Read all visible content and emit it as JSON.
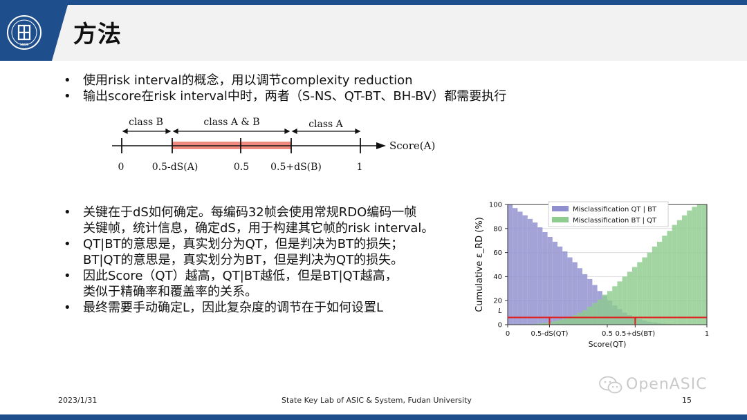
{
  "slide": {
    "title": "方法",
    "bullets_top": [
      "使用risk interval的概念，用以调节complexity reduction",
      "输出score在risk interval中时，两者（S-NS、QT-BT、BH-BV）都需要执行"
    ],
    "bullets_bottom": [
      {
        "line1": "关键在于dS如何确定。每编码32帧会使用常规RDO编码一帧",
        "line2": "关键帧，统计信息，确定dS，用于构建其它帧的risk interval。"
      },
      {
        "line1": "QT|BT的意思是，真实划分为QT，但是判决为BT的损失；",
        "line2": "BT|QT的意思是，真实划分为BT，但是判决为QT的损失。"
      },
      {
        "line1": "因此Score（QT）越高，QT|BT越低，但是BT|QT越高，",
        "line2": "类似于精确率和覆盖率的关系。"
      },
      {
        "line1": "最终需要手动确定L，因此复杂度的调节在于如何设置L",
        "line2": ""
      }
    ]
  },
  "diagram": {
    "regions": [
      "class B",
      "class A & B",
      "class A"
    ],
    "axis_label": "Score(A)",
    "ticks": [
      "0",
      "0.5-dS(A)",
      "0.5",
      "0.5+dS(B)",
      "1"
    ],
    "band_color": "#f08a80"
  },
  "chart_data": {
    "type": "bar",
    "xlabel": "Score(QT)",
    "ylabel": "Cumulative ε_RD (%)",
    "ylim": [
      0,
      100
    ],
    "xlim": [
      0,
      1
    ],
    "yticks": [
      "0",
      "20",
      "40",
      "60",
      "80",
      "100"
    ],
    "ytick_extra": "L",
    "xticks": [
      "0",
      "0.5-dS(QT)",
      "0.5",
      "0.5+dS(BT)",
      "1"
    ],
    "xtick_values": [
      0,
      0.21,
      0.5,
      0.64,
      1
    ],
    "threshold_L": 6,
    "threshold_color": "#e02020",
    "legend_placement": "top-right",
    "grid": true,
    "series": [
      {
        "name": "Misclassification QT | BT",
        "color": "#8f8fd0",
        "x": [
          0.0125,
          0.0375,
          0.0625,
          0.0875,
          0.1125,
          0.1375,
          0.1625,
          0.1875,
          0.2125,
          0.2375,
          0.2625,
          0.2875,
          0.3125,
          0.3375,
          0.3625,
          0.3875,
          0.4125,
          0.4375,
          0.4625,
          0.4875,
          0.5125,
          0.5375,
          0.5625,
          0.5875,
          0.6125,
          0.6375,
          0.6625,
          0.6875,
          0.7125,
          0.7375,
          0.7625,
          0.7875,
          0.8125,
          0.8375,
          0.8625,
          0.8875,
          0.9125,
          0.9375,
          0.9625,
          0.9875
        ],
        "values": [
          100,
          97,
          94,
          91,
          88,
          85,
          81,
          77,
          73,
          69,
          65,
          61,
          56,
          52,
          47,
          42,
          38,
          33,
          28,
          24,
          20,
          16,
          13,
          10,
          8,
          6,
          4.5,
          3.5,
          2.5,
          1.8,
          1.2,
          0.8,
          0.5,
          0.3,
          0.2,
          0.1,
          0.05,
          0,
          0,
          0
        ]
      },
      {
        "name": "Misclassification BT | QT",
        "color": "#8fcc8f",
        "x": [
          0.0125,
          0.0375,
          0.0625,
          0.0875,
          0.1125,
          0.1375,
          0.1625,
          0.1875,
          0.2125,
          0.2375,
          0.2625,
          0.2875,
          0.3125,
          0.3375,
          0.3625,
          0.3875,
          0.4125,
          0.4375,
          0.4625,
          0.4875,
          0.5125,
          0.5375,
          0.5625,
          0.5875,
          0.6125,
          0.6375,
          0.6625,
          0.6875,
          0.7125,
          0.7375,
          0.7625,
          0.7875,
          0.8125,
          0.8375,
          0.8625,
          0.8875,
          0.9125,
          0.9375,
          0.9625,
          0.9875
        ],
        "values": [
          0,
          0,
          0,
          0,
          0.3,
          0.6,
          1,
          1.5,
          2,
          3,
          4,
          5,
          6.5,
          8,
          10,
          12,
          15,
          18,
          21,
          25,
          28,
          32,
          36,
          40,
          44,
          48,
          52,
          56,
          60,
          65,
          69,
          74,
          78,
          83,
          87,
          91,
          95,
          98,
          100,
          100
        ]
      }
    ]
  },
  "footer": {
    "date": "2023/1/31",
    "org": "State Key Lab of ASIC & System, Fudan University",
    "page": "15"
  },
  "watermark": {
    "text": "OpenASIC",
    "icon": "wechat-icon"
  },
  "logo": {
    "icon": "university-seal-icon",
    "year": "1905"
  },
  "colors": {
    "brand": "#1f4e8c",
    "header_gray": "#f2f2f2"
  }
}
